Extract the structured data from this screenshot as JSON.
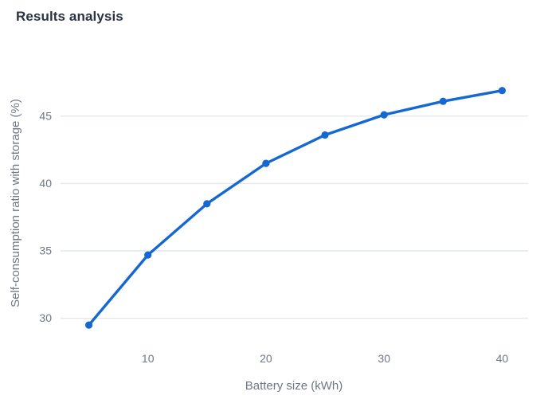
{
  "page": {
    "title": "Results analysis"
  },
  "chart_data": {
    "type": "line",
    "title": "Results analysis",
    "xlabel": "Battery size (kWh)",
    "ylabel": "Self-consumption ratio with storage (%)",
    "x": [
      5,
      10,
      15,
      20,
      25,
      30,
      35,
      40
    ],
    "y": [
      29.5,
      34.7,
      38.5,
      41.5,
      43.6,
      45.1,
      46.1,
      46.9
    ],
    "series_name": "Self-consumption ratio with storage (%)",
    "xticks": [
      10,
      20,
      30,
      40
    ],
    "yticks": [
      30,
      35,
      40,
      45
    ],
    "xlim": [
      2.6,
      42.2
    ],
    "ylim": [
      28.5,
      48.3
    ],
    "grid": "horizontal-only",
    "legend_position": "none",
    "colors": {
      "line": "#1568d2",
      "marker": "#1568d2",
      "gridline": "#e2e8f1",
      "tick_text": "#6e7787",
      "axis_title_text": "#6e7787",
      "title_text": "#2b3344",
      "background": "#ffffff"
    }
  }
}
